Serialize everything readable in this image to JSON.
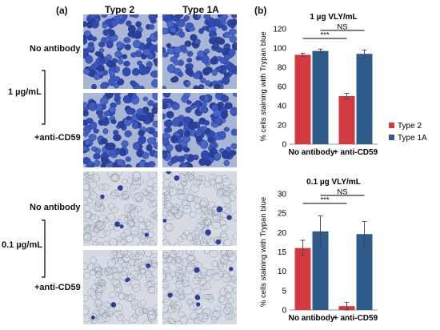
{
  "figure": {
    "panel_a": {
      "label": "(a)",
      "columns": [
        "Type 2",
        "Type 1A"
      ],
      "row_labels": [
        "No antibody",
        "+anti-CD59",
        "No antibody",
        "+anti-CD59"
      ],
      "concentrations": [
        "1 µg/mL",
        "0.1 µg/mL"
      ],
      "image_tiles": [
        {
          "row": 0,
          "col": 0,
          "stain": "dense-blue"
        },
        {
          "row": 0,
          "col": 1,
          "stain": "dense-blue"
        },
        {
          "row": 1,
          "col": 0,
          "stain": "dense-blue"
        },
        {
          "row": 1,
          "col": 1,
          "stain": "dense-blue"
        },
        {
          "row": 2,
          "col": 0,
          "stain": "sparse-blue"
        },
        {
          "row": 2,
          "col": 1,
          "stain": "sparse-blue"
        },
        {
          "row": 3,
          "col": 0,
          "stain": "sparse-blue"
        },
        {
          "row": 3,
          "col": 1,
          "stain": "sparse-blue"
        }
      ]
    },
    "panel_b": {
      "label": "(b)"
    },
    "colors": {
      "type2": "#d33a3f",
      "type1a": "#2f5b8a",
      "dense": "#3f5fc4",
      "sparse": "#c9d2e0"
    }
  },
  "chart_data": [
    {
      "type": "bar",
      "title": "1 µg VLY/mL",
      "categories": [
        "No antibody",
        "+ anti-CD59"
      ],
      "series": [
        {
          "name": "Type 2",
          "values": [
            93,
            50
          ],
          "errors": [
            1.5,
            3
          ]
        },
        {
          "name": "Type 1A",
          "values": [
            97,
            94
          ],
          "errors": [
            2,
            4
          ]
        }
      ],
      "ylabel": "% cells staining with Trypan blue",
      "ylim": [
        0,
        120
      ],
      "yticks": [
        0,
        20,
        40,
        60,
        80,
        100,
        120
      ],
      "legend": "right",
      "annotations": [
        {
          "text": "***",
          "from": [
            0,
            0
          ],
          "to": [
            1,
            0
          ]
        },
        {
          "text": "NS",
          "from": [
            0,
            1
          ],
          "to": [
            1,
            1
          ]
        }
      ]
    },
    {
      "type": "bar",
      "title": "0.1 µg VLY/mL",
      "categories": [
        "No antibody",
        "+ anti-CD59"
      ],
      "series": [
        {
          "name": "Type 2",
          "values": [
            16,
            1
          ],
          "errors": [
            2,
            1
          ]
        },
        {
          "name": "Type 1A",
          "values": [
            20.3,
            19.6
          ],
          "errors": [
            4,
            3.3
          ]
        }
      ],
      "ylabel": "% cells staining with Trypan blue",
      "ylim": [
        0,
        30
      ],
      "yticks": [
        0,
        5,
        10,
        15,
        20,
        25,
        30
      ],
      "annotations": [
        {
          "text": "***",
          "from": [
            0,
            0
          ],
          "to": [
            1,
            0
          ]
        },
        {
          "text": "NS",
          "from": [
            0,
            1
          ],
          "to": [
            1,
            1
          ]
        }
      ]
    }
  ]
}
